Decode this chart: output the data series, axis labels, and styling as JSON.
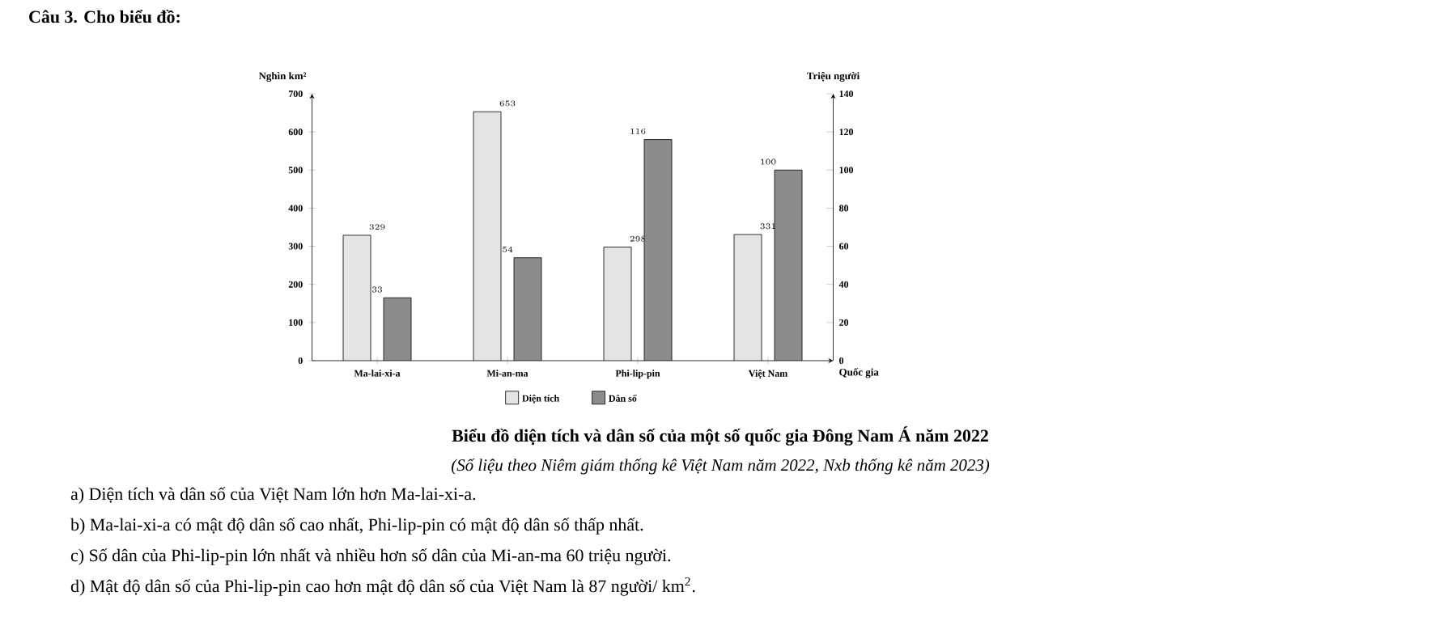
{
  "chart_data": {
    "type": "bar",
    "title": "Biểu đồ diện tích và dân số của một số quốc gia Đông Nam Á năm 2022",
    "subtitle": "(Số liệu theo Niêm giám thống kê Việt Nam năm 2022, Nxb thống kê năm 2023)",
    "categories": [
      "Ma-lai-xi-a",
      "Mi-an-ma",
      "Phi-lip-pin",
      "Việt Nam"
    ],
    "series": [
      {
        "name": "Diện tích",
        "color": "#e4e4e4",
        "values": [
          329,
          653,
          298,
          331
        ]
      },
      {
        "name": "Dân số",
        "color": "#8c8c8c",
        "values": [
          33,
          54,
          116,
          100
        ],
        "axis": "y2"
      }
    ],
    "xlabel": "Quốc gia",
    "ylabel": "Nghìn km²",
    "y2label": "Triệu người",
    "ylim": [
      0,
      700
    ],
    "yticks": [
      0,
      100,
      200,
      300,
      400,
      500,
      600,
      700
    ],
    "y2lim": [
      0,
      140
    ],
    "y2ticks": [
      0,
      20,
      40,
      60,
      80,
      100,
      120,
      140
    ],
    "data_labels": true,
    "legend": "bottom",
    "annotations": [
      "Câu 3. Cho biểu đồ:",
      "a) Diện tích và dân số của Việt Nam lớn hơn Ma-lai-xi-a.",
      "b) Ma-lai-xi-a có mật độ dân số cao nhất, Phi-lip-pin có mật độ dân số thấp nhất.",
      "c) Số dân của Phi-lip-pin lớn nhất và nhiều hơn số dân của Mi-an-ma 60 triệu người.",
      "d) Mật độ dân số của Phi-lip-pin cao hơn mật độ dân số của Việt Nam là 87 người/ km$^{2}$."
    ]
  }
}
